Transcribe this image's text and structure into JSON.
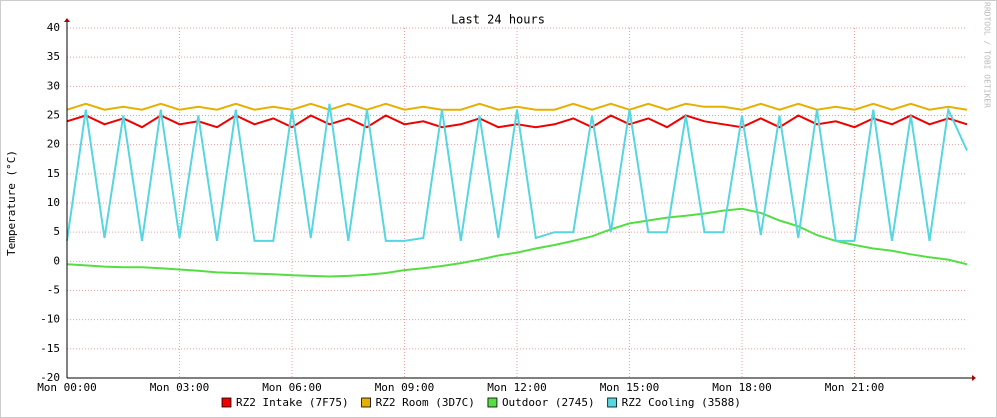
{
  "chart_data": {
    "type": "line",
    "title": "Last 24 hours",
    "y_label": "Temperature (°C)",
    "watermark": "RRDTOOL / TOBI OETIKER",
    "x": [
      0,
      0.5,
      1,
      1.5,
      2,
      2.5,
      3,
      3.5,
      4,
      4.5,
      5,
      5.5,
      6,
      6.5,
      7,
      7.5,
      8,
      8.5,
      9,
      9.5,
      10,
      10.5,
      11,
      11.5,
      12,
      12.5,
      13,
      13.5,
      14,
      14.5,
      15,
      15.5,
      16,
      16.5,
      17,
      17.5,
      18,
      18.5,
      19,
      19.5,
      20,
      20.5,
      21,
      21.5,
      22,
      22.5,
      23,
      23.5,
      24
    ],
    "series": [
      {
        "name": "RZ2 Intake (7F75)",
        "color": "#ee0000",
        "values": [
          24,
          25,
          23.5,
          24.5,
          23,
          25,
          23.5,
          24,
          23,
          25,
          23.5,
          24.5,
          23,
          25,
          23.5,
          24.5,
          23,
          25,
          23.5,
          24,
          23,
          23.5,
          24.5,
          23,
          23.5,
          23,
          23.5,
          24.5,
          23,
          25,
          23.5,
          24.5,
          23,
          25,
          24,
          23.5,
          23,
          24.5,
          23,
          25,
          23.5,
          24,
          23,
          24.5,
          23.5,
          25,
          23.5,
          24.5,
          23.5
        ]
      },
      {
        "name": "RZ2 Room (3D7C)",
        "color": "#e6b000",
        "values": [
          26,
          27,
          26,
          26.5,
          26,
          27,
          26,
          26.5,
          26,
          27,
          26,
          26.5,
          26,
          27,
          26,
          27,
          26,
          27,
          26,
          26.5,
          26,
          26,
          27,
          26,
          26.5,
          26,
          26,
          27,
          26,
          27,
          26,
          27,
          26,
          27,
          26.5,
          26.5,
          26,
          27,
          26,
          27,
          26,
          26.5,
          26,
          27,
          26,
          27,
          26,
          26.5,
          26
        ]
      },
      {
        "name": "Outdoor (2745)",
        "color": "#55dd44",
        "values": [
          -0.5,
          -0.7,
          -0.9,
          -1,
          -1,
          -1.2,
          -1.4,
          -1.6,
          -1.9,
          -2,
          -2.1,
          -2.2,
          -2.4,
          -2.5,
          -2.6,
          -2.5,
          -2.3,
          -2,
          -1.5,
          -1.2,
          -0.8,
          -0.3,
          0.3,
          1,
          1.5,
          2.2,
          2.8,
          3.5,
          4.3,
          5.5,
          6.5,
          7,
          7.5,
          7.8,
          8.2,
          8.7,
          9,
          8.3,
          7,
          6,
          4.5,
          3.5,
          2.8,
          2.2,
          1.8,
          1.2,
          0.7,
          0.3,
          -0.5
        ]
      },
      {
        "name": "RZ2 Cooling (3588)",
        "color": "#55d6e0",
        "values": [
          3.5,
          26,
          4,
          25,
          3.5,
          26,
          4,
          25,
          3.5,
          26,
          3.5,
          3.5,
          26,
          4,
          27,
          3.5,
          26,
          3.5,
          3.5,
          4,
          26,
          3.5,
          25,
          4,
          26,
          4,
          5,
          5,
          25,
          5,
          26,
          5,
          5,
          25,
          5,
          5,
          25,
          4.5,
          25,
          4,
          26,
          3.5,
          3.5,
          26,
          3.5,
          25,
          3.5,
          26,
          19
        ]
      }
    ],
    "xlim": [
      0,
      24
    ],
    "xticks": [
      {
        "value": 0,
        "label": "Mon 00:00"
      },
      {
        "value": 3,
        "label": "Mon 03:00"
      },
      {
        "value": 6,
        "label": "Mon 06:00"
      },
      {
        "value": 9,
        "label": "Mon 09:00"
      },
      {
        "value": 12,
        "label": "Mon 12:00"
      },
      {
        "value": 15,
        "label": "Mon 15:00"
      },
      {
        "value": 18,
        "label": "Mon 18:00"
      },
      {
        "value": 21,
        "label": "Mon 21:00"
      }
    ],
    "ylim": [
      -20,
      40
    ],
    "yticks": [
      -20,
      -15,
      -10,
      -5,
      0,
      5,
      10,
      15,
      20,
      25,
      30,
      35,
      40
    ],
    "grid": true
  }
}
